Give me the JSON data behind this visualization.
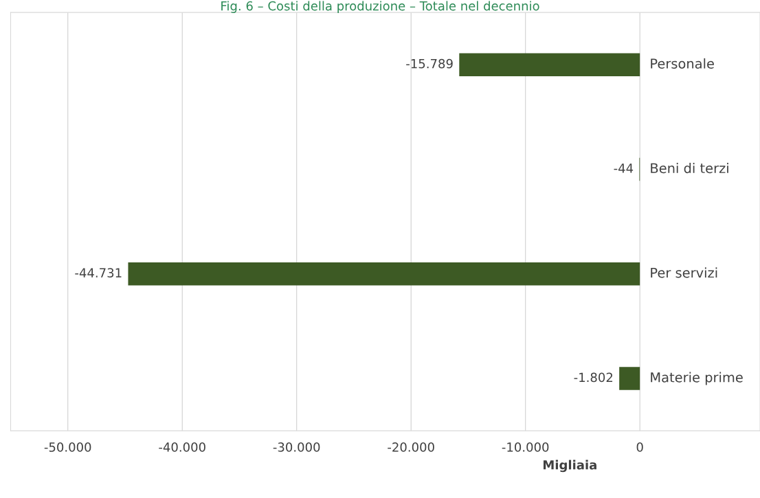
{
  "chart_data": {
    "type": "bar",
    "orientation": "horizontal",
    "title": "Fig. 6 – Costi della produzione – Totale nel decennio",
    "xlabel": "Migliaia",
    "categories": [
      "Personale",
      "Beni di terzi",
      "Per servizi",
      "Materie prime"
    ],
    "values": [
      -15789,
      -44,
      -44731,
      -1802
    ],
    "value_labels": [
      "-15.789",
      "-44",
      "-44.731",
      "-1.802"
    ],
    "color": "#3d5a24",
    "xlim": [
      -55000,
      10500
    ],
    "xticks": [
      {
        "value": -50000,
        "label": "-50.000"
      },
      {
        "value": -40000,
        "label": "-40.000"
      },
      {
        "value": -30000,
        "label": "-30.000"
      },
      {
        "value": -20000,
        "label": "-20.000"
      },
      {
        "value": -10000,
        "label": "-10.000"
      },
      0
    ],
    "grid": "x",
    "legend": false
  }
}
